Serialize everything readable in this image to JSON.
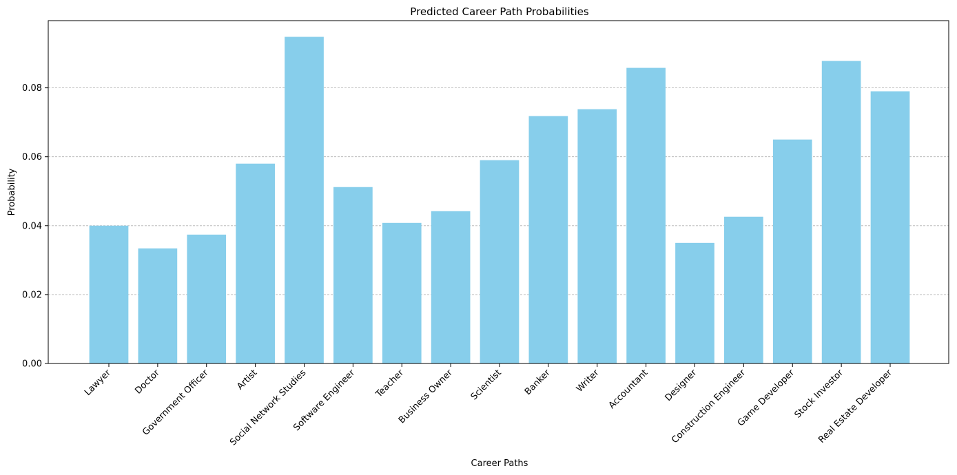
{
  "chart_data": {
    "type": "bar",
    "title": "Predicted Career Path Probabilities",
    "xlabel": "Career Paths",
    "ylabel": "Probability",
    "categories": [
      "Lawyer",
      "Doctor",
      "Government Officer",
      "Artist",
      "Social Network Studies",
      "Software Engineer",
      "Teacher",
      "Business Owner",
      "Scientist",
      "Banker",
      "Writer",
      "Accountant",
      "Designer",
      "Construction Engineer",
      "Game Developer",
      "Stock Investor",
      "Real Estate Developer"
    ],
    "values": [
      0.04,
      0.0334,
      0.0374,
      0.058,
      0.0948,
      0.0512,
      0.0408,
      0.0442,
      0.059,
      0.0718,
      0.0738,
      0.0858,
      0.035,
      0.0426,
      0.065,
      0.0878,
      0.079
    ],
    "ylim": [
      0,
      0.0995
    ],
    "yticks": [
      0.0,
      0.02,
      0.04,
      0.06,
      0.08
    ],
    "ytick_labels": [
      "0.00",
      "0.02",
      "0.04",
      "0.06",
      "0.08"
    ],
    "grid": "y-dashed",
    "bar_color": "#87ceeb"
  }
}
